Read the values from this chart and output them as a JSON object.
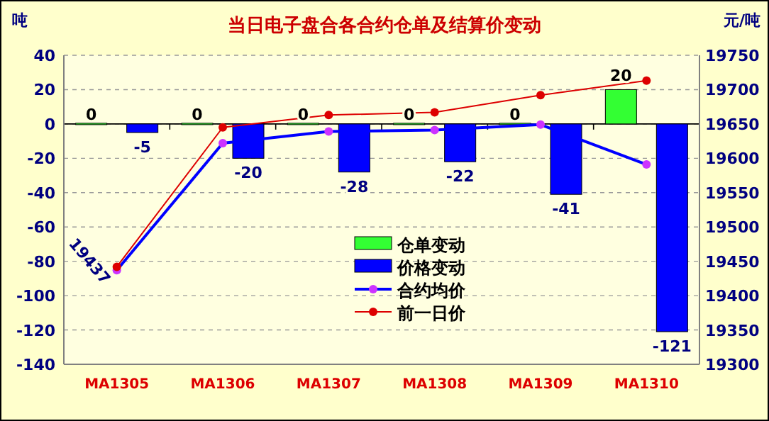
{
  "chart_data": {
    "type": "bar",
    "title": "当日电子盘合各合约仓单及结算价变动",
    "ylabel": "吨",
    "y2label": "元/吨",
    "categories": [
      "MA1305",
      "MA1306",
      "MA1307",
      "MA1308",
      "MA1309",
      "MA1310"
    ],
    "series": [
      {
        "name": "仓单变动",
        "color": "#33ff33",
        "values": [
          0,
          0,
          0,
          0,
          0,
          20
        ],
        "data_labels": true
      },
      {
        "name": "价格变动",
        "color": "#0000ff",
        "values": [
          -5,
          -20,
          -28,
          -22,
          -41,
          -121
        ],
        "data_labels": true
      },
      {
        "name": "合约均价",
        "type": "line",
        "axis": "y2",
        "color": "#0000ff",
        "marker": "circle",
        "values": [
          19437,
          19622,
          19639,
          19641,
          19649,
          19591
        ],
        "value_labels": [
          "19437",
          null,
          null,
          null,
          null,
          null
        ]
      },
      {
        "name": "前一日价",
        "type": "line",
        "axis": "y2",
        "color": "#dd0000",
        "marker": "circle",
        "values": [
          19442,
          19645,
          19663,
          19667,
          19692,
          19713
        ]
      }
    ],
    "ylim": [
      -140,
      40
    ],
    "yticks": [
      -140,
      -120,
      -100,
      -80,
      -60,
      -40,
      -20,
      0,
      20,
      40
    ],
    "y2lim": [
      19300,
      19750
    ],
    "y2ticks": [
      19300,
      19350,
      19400,
      19450,
      19500,
      19550,
      19600,
      19650,
      19700,
      19750
    ],
    "grid": "y",
    "legend": "center"
  }
}
